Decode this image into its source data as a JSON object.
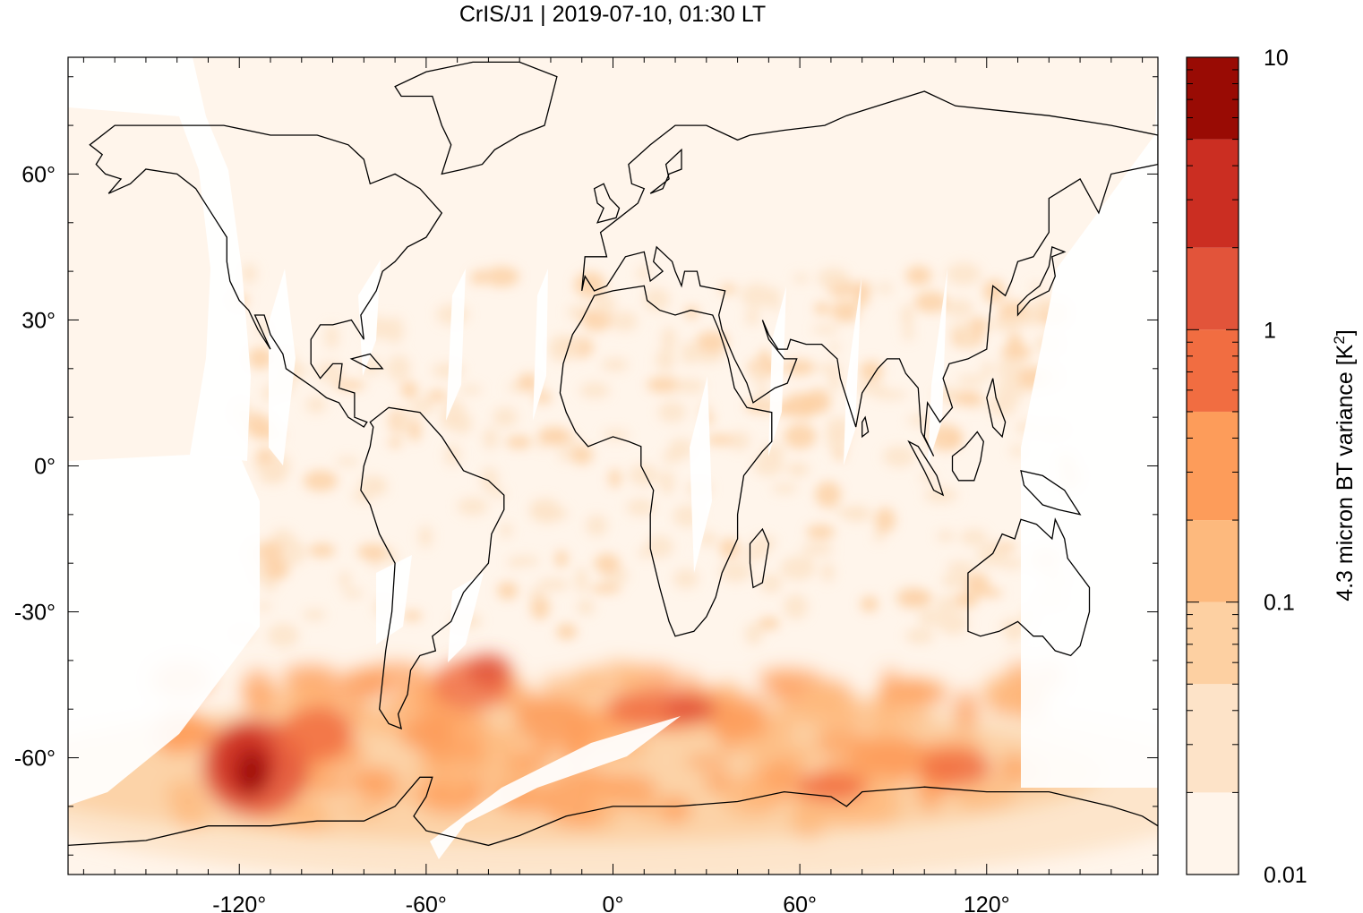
{
  "title": "CrIS/J1 | 2019-07-10, 01:30 LT",
  "chart_data": {
    "type": "heatmap",
    "title": "CrIS/J1 | 2019-07-10, 01:30 LT",
    "x_axis": {
      "range": [
        -175,
        175
      ],
      "ticks": [
        -120,
        -60,
        0,
        60,
        120
      ],
      "tick_labels": [
        "-120°",
        "-60°",
        "0°",
        "60°",
        "120°"
      ]
    },
    "y_axis": {
      "range": [
        -84,
        84
      ],
      "ticks": [
        60,
        30,
        0,
        -30,
        -60
      ],
      "tick_labels": [
        "60°",
        "30°",
        "0°",
        "-30°",
        "-60°"
      ]
    },
    "colorbar": {
      "label_main": "4.3 micron BT variance [K",
      "label_sup": "2",
      "label_end": "]",
      "scale": "log",
      "range": [
        0.01,
        10
      ],
      "tick_values": [
        10,
        1,
        0.1,
        0.01
      ],
      "tick_labels": [
        "10",
        "1",
        "0.1",
        "0.01"
      ],
      "levels": [
        0.01,
        0.02,
        0.05,
        0.1,
        0.2,
        0.5,
        1,
        2,
        5,
        10
      ],
      "colors": [
        "#fff5eb",
        "#fde3c8",
        "#fdd0a2",
        "#fdb97d",
        "#fd9c5a",
        "#f16d41",
        "#e2543a",
        "#cb2e22",
        "#990b04"
      ]
    },
    "features": [
      {
        "name": "southern-hemisphere-band",
        "lat_range": [
          -75,
          -35
        ],
        "peak_value": 8,
        "peak_lon": -115,
        "peak_lat": -62
      }
    ],
    "swath_gaps": "orbit gaps between satellite tracks",
    "coastlines": true,
    "grid": false
  }
}
